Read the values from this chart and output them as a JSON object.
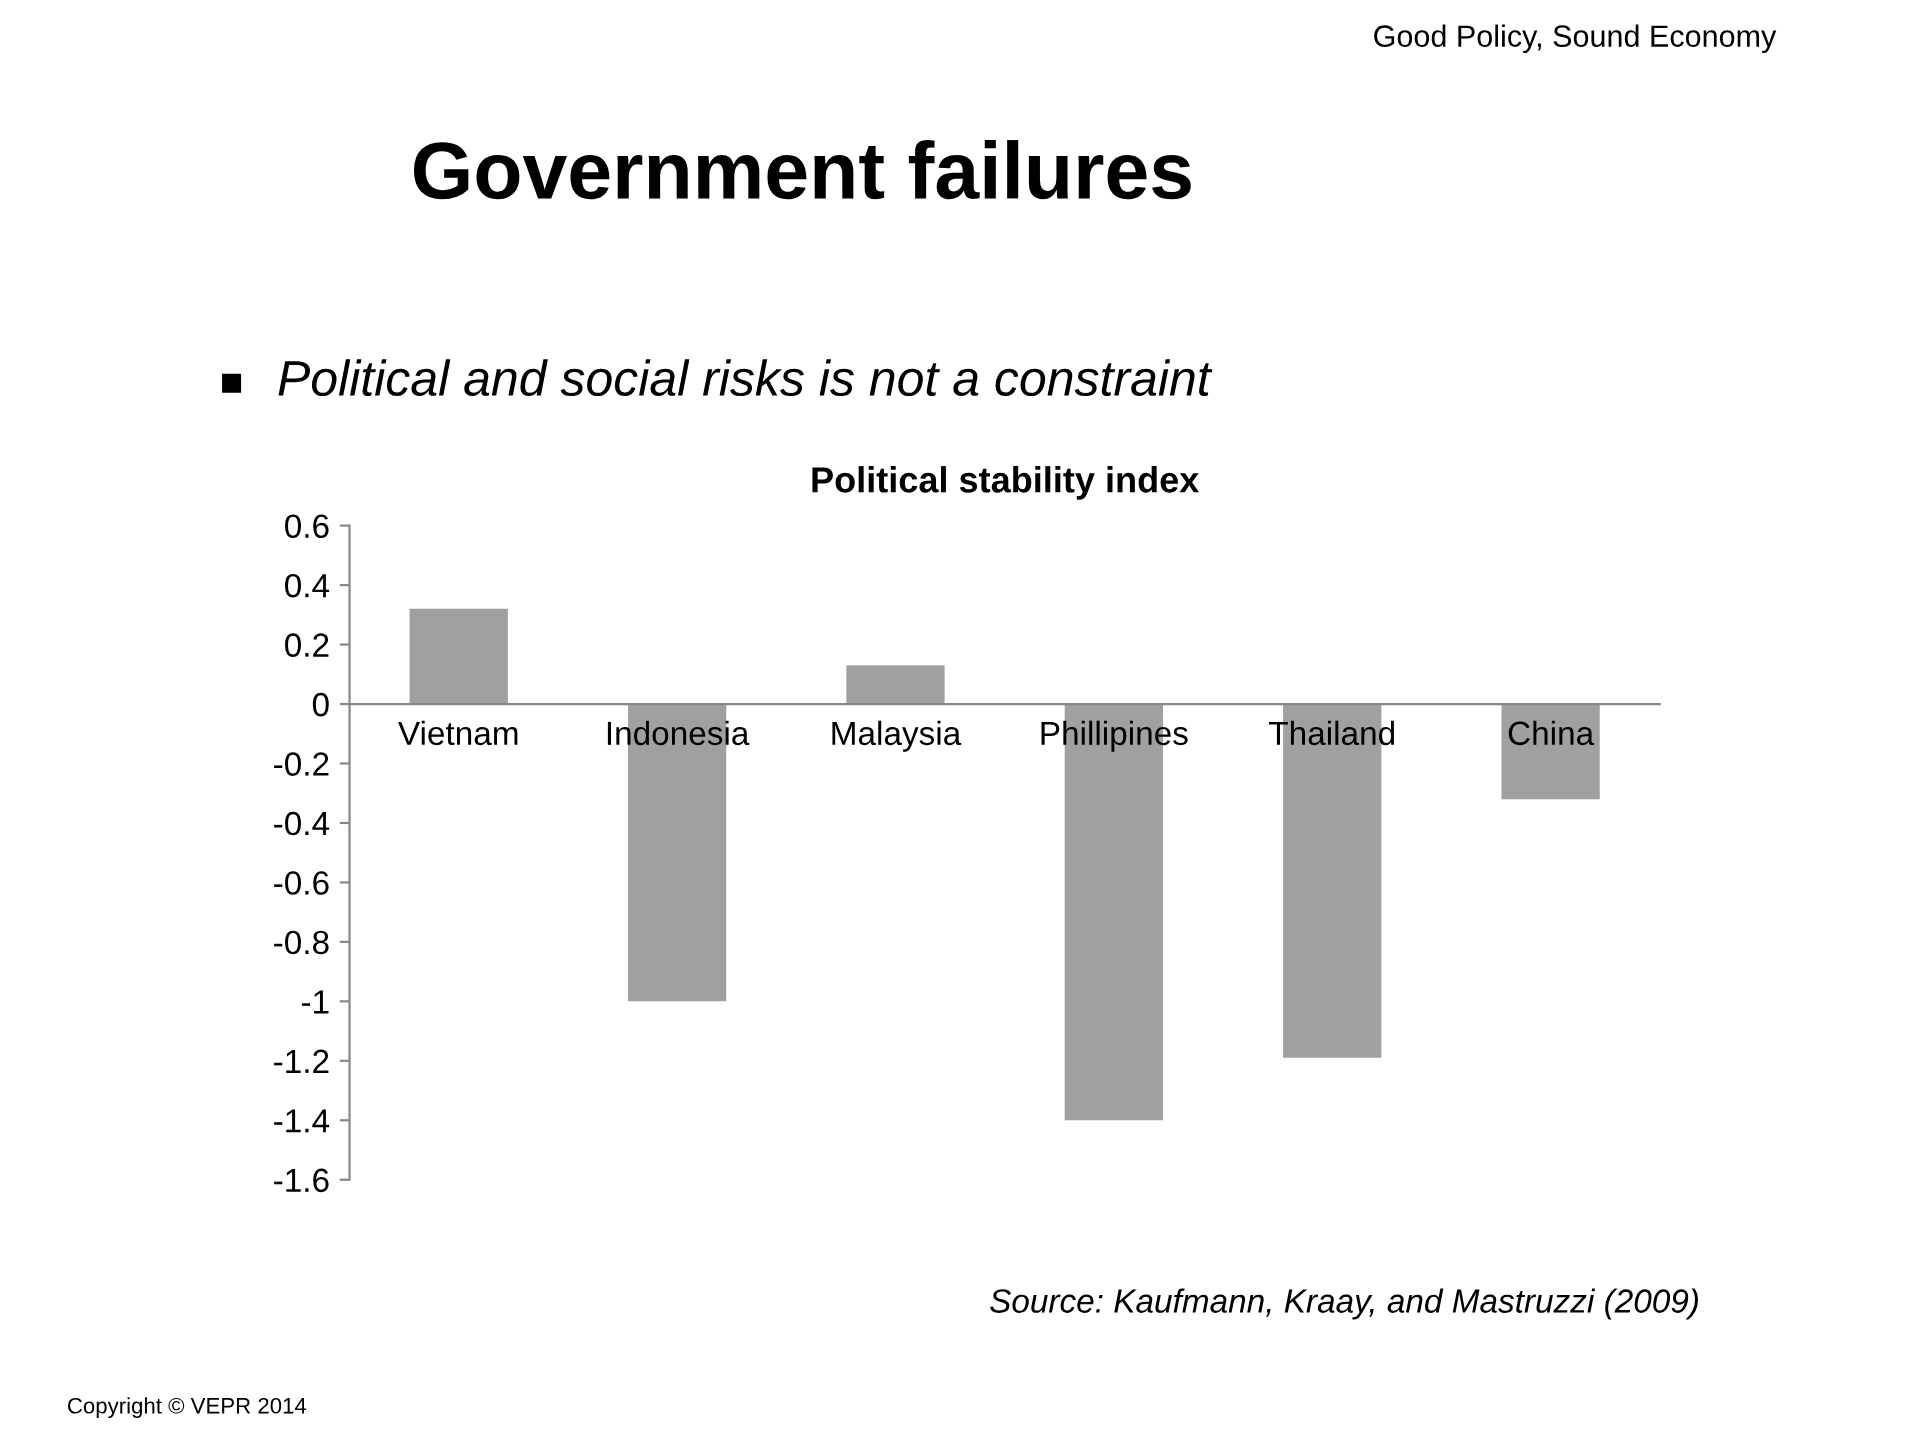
{
  "chart_data": {
    "type": "bar",
    "title": "Political stability index",
    "subtitle": "Political and social risks is not a constraint",
    "categories": [
      "Vietnam",
      "Indonesia",
      "Malaysia",
      "Phillipines",
      "Thailand",
      "China"
    ],
    "values": [
      0.32,
      -1.0,
      0.13,
      -1.4,
      -1.19,
      -0.32
    ],
    "color": "#a0a0a0",
    "ylim": [
      -1.6,
      0.6
    ],
    "yticks": [
      {
        "value": -1.6,
        "label": "-1.6"
      },
      {
        "value": -1.4,
        "label": "-1.4"
      },
      {
        "value": -1.2,
        "label": "-1.2"
      },
      {
        "value": -1,
        "label": "-1"
      },
      {
        "value": -0.8,
        "label": "-0.8"
      },
      {
        "value": -0.6,
        "label": "-0.6"
      },
      {
        "value": -0.4,
        "label": "-0.4"
      },
      {
        "value": -0.2,
        "label": "-0.2"
      },
      0,
      0.2,
      0.4,
      0.6
    ],
    "grid": false,
    "annotations": [
      "Government failures",
      "Good Policy, Sound Economy",
      "Source: Kaufmann, Kraay, and Mastruzzi (2009)",
      "Copyright © VEPR 2014"
    ]
  }
}
